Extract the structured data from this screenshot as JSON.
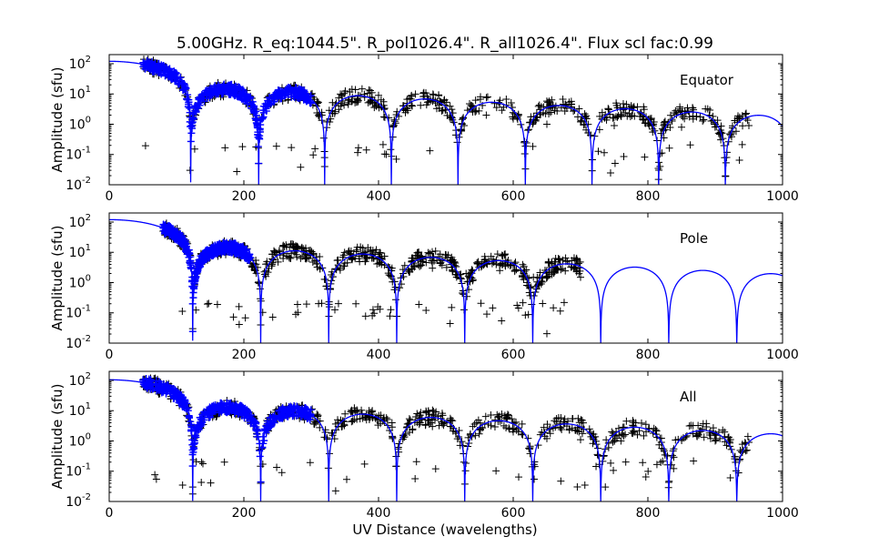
{
  "figure": {
    "title": "5.00GHz. R_eq:1044.5\". R_pol1026.4\". R_all1026.4\". Flux scl fac:0.99",
    "xlabel": "UV Distance (wavelengths)"
  },
  "colors": {
    "model": "#0000ff",
    "fitted": "#0000ff",
    "data": "#000000",
    "axes": "#000000"
  },
  "chart_data": [
    {
      "type": "scatter",
      "panel_label": "Equator",
      "ylabel": "Amplitude (sfu)",
      "xlim": [
        0,
        1000
      ],
      "ylim_log10": [
        -2,
        2.3
      ],
      "yscale": "log",
      "x_ticks": [
        "0",
        "200",
        "400",
        "600",
        "800",
        "1000"
      ],
      "y_ticks": [
        {
          "base": "10",
          "exp": "-2"
        },
        {
          "base": "10",
          "exp": "-1"
        },
        {
          "base": "10",
          "exp": "0"
        },
        {
          "base": "10",
          "exp": "1"
        },
        {
          "base": "10",
          "exp": "2"
        }
      ],
      "model_zeros": [
        121,
        222,
        320,
        419,
        518,
        618,
        717,
        816,
        915
      ],
      "model_peak": 120,
      "fitted_range": [
        0,
        300
      ],
      "data_range": [
        50,
        950
      ],
      "series": [
        {
          "name": "",
          "points": [
            [
              60,
              95
            ],
            [
              120,
              0.03
            ],
            [
              160,
              15
            ],
            [
              222,
              0.05
            ],
            [
              270,
              8
            ],
            [
              320,
              0.04
            ],
            [
              370,
              6
            ],
            [
              400,
              9
            ],
            [
              450,
              4
            ],
            [
              500,
              3
            ],
            [
              560,
              2
            ],
            [
              600,
              1.5
            ],
            [
              650,
              1
            ],
            [
              700,
              1.2
            ],
            [
              750,
              0.9
            ],
            [
              800,
              1.1
            ],
            [
              850,
              0.8
            ],
            [
              900,
              1
            ],
            [
              950,
              0.9
            ]
          ]
        }
      ]
    },
    {
      "type": "scatter",
      "panel_label": "Pole",
      "ylabel": "Amplitude (sfu)",
      "xlim": [
        0,
        1000
      ],
      "ylim_log10": [
        -2,
        2.3
      ],
      "yscale": "log",
      "x_ticks": [
        "0",
        "200",
        "400",
        "600",
        "800",
        "1000"
      ],
      "y_ticks": [
        {
          "base": "10",
          "exp": "-2"
        },
        {
          "base": "10",
          "exp": "-1"
        },
        {
          "base": "10",
          "exp": "0"
        },
        {
          "base": "10",
          "exp": "1"
        },
        {
          "base": "10",
          "exp": "2"
        }
      ],
      "model_zeros": [
        124,
        225,
        326,
        427,
        528,
        629,
        730,
        831,
        932
      ],
      "model_peak": 120,
      "fitted_range": [
        80,
        210
      ],
      "data_range": [
        80,
        700
      ],
      "series": [
        {
          "name": "",
          "points": [
            [
              80,
              50
            ],
            [
              124,
              0.03
            ],
            [
              160,
              15
            ],
            [
              225,
              0.04
            ],
            [
              380,
              5
            ],
            [
              420,
              3
            ],
            [
              480,
              3
            ],
            [
              530,
              2
            ],
            [
              580,
              2.5
            ],
            [
              630,
              1.5
            ],
            [
              700,
              1.5
            ]
          ]
        }
      ]
    },
    {
      "type": "scatter",
      "panel_label": "All",
      "ylabel": "Amplitude (sfu)",
      "xlim": [
        0,
        1000
      ],
      "ylim_log10": [
        -2,
        2.3
      ],
      "yscale": "log",
      "x_ticks": [
        "0",
        "200",
        "400",
        "600",
        "800",
        "1000"
      ],
      "y_ticks": [
        {
          "base": "10",
          "exp": "-2"
        },
        {
          "base": "10",
          "exp": "-1"
        },
        {
          "base": "10",
          "exp": "0"
        },
        {
          "base": "10",
          "exp": "1"
        },
        {
          "base": "10",
          "exp": "2"
        }
      ],
      "model_zeros": [
        124,
        225,
        326,
        427,
        528,
        629,
        730,
        831,
        932
      ],
      "model_peak": 105,
      "fitted_range": [
        0,
        300
      ],
      "data_range": [
        50,
        950
      ],
      "series": [
        {
          "name": "",
          "points": [
            [
              60,
              90
            ],
            [
              124,
              0.03
            ],
            [
              160,
              15
            ],
            [
              225,
              0.04
            ],
            [
              270,
              8
            ],
            [
              380,
              6
            ],
            [
              420,
              4
            ],
            [
              480,
              3
            ],
            [
              540,
              3
            ],
            [
              600,
              2
            ],
            [
              650,
              1.2
            ],
            [
              700,
              1.1
            ],
            [
              760,
              1
            ],
            [
              820,
              0.9
            ],
            [
              900,
              1
            ],
            [
              950,
              0.9
            ]
          ]
        }
      ]
    }
  ]
}
